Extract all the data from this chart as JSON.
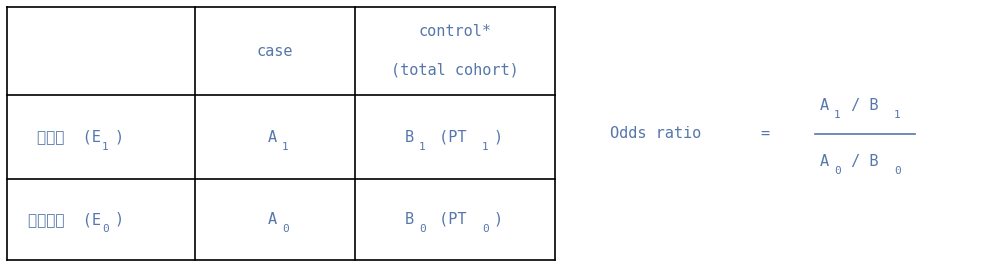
{
  "color_text": "#5577AA",
  "color_border": "#000000",
  "bg_color": "#FFFFFF",
  "figwidth": 10.0,
  "figheight": 2.67,
  "col_edges": [
    0.07,
    1.95,
    3.55,
    5.55
  ],
  "row_edges": [
    2.6,
    1.72,
    0.88,
    0.07
  ],
  "header_case": "case",
  "header_ctrl1": "control*",
  "header_ctrl2": "(total cohort)",
  "row1_kor": "폭로군  (E",
  "row2_kor": "비폭로군  (E",
  "odds_label": "Odds ratio",
  "equals": "=",
  "fs_main": 11,
  "fs_sub": 8,
  "lw": 1.2
}
